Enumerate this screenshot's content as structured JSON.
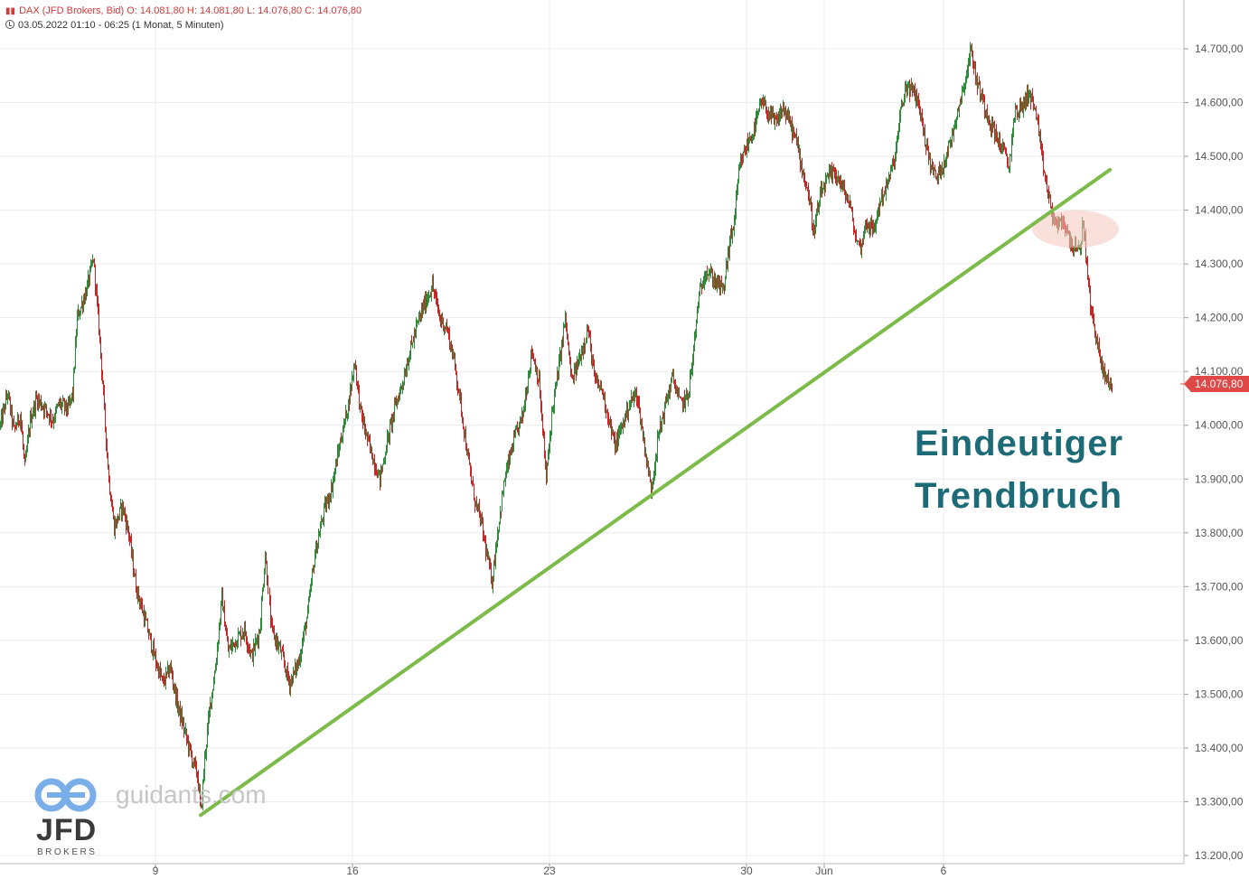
{
  "header": {
    "instrument_line": "DAX (JFD Brokers, Bid)  O: 14.081,80  H: 14.081,80  L: 14.076,80  C: 14.076,80",
    "time_line": "03.05.2022 01:10 - 06:25   (1 Monat, 5 Minuten)"
  },
  "annotation": {
    "line1": "Eindeutiger",
    "line2": "Trendbruch"
  },
  "watermark": {
    "site": "guidants.com",
    "broker": "JFD",
    "broker_sub": "BROKERS"
  },
  "colors": {
    "candle_up": "#2e8b3a",
    "candle_down": "#c62828",
    "trendline": "#7cbb4a",
    "highlight": "#f5c6bd",
    "price_tag": "#e04848",
    "annotation": "#1e6b78",
    "grid": "#ececec"
  },
  "chart_data": {
    "type": "candlestick",
    "instrument": "DAX (JFD Brokers, Bid)",
    "timeframe": "1 Monat, 5 Minuten",
    "x_tick_labels": [
      "9",
      "16",
      "23",
      "30",
      "Jun",
      "6"
    ],
    "y_tick_labels": [
      "14.700,00",
      "14.600,00",
      "14.500,00",
      "14.400,00",
      "14.300,00",
      "14.200,00",
      "14.100,00",
      "14.000,00",
      "13.900,00",
      "13.800,00",
      "13.700,00",
      "13.600,00",
      "13.500,00",
      "13.400,00",
      "13.300,00",
      "13.200,00"
    ],
    "y_ticks": [
      14700,
      14600,
      14500,
      14400,
      14300,
      14200,
      14100,
      14000,
      13900,
      13800,
      13700,
      13600,
      13500,
      13400,
      13300,
      13200
    ],
    "ylim": [
      13160,
      14760
    ],
    "last_price": 14076.8,
    "last_price_label": "14.076,80",
    "ohlc_last": {
      "open": 14081.8,
      "high": 14081.8,
      "low": 14076.8,
      "close": 14076.8
    },
    "price_path": [
      [
        0,
        14000
      ],
      [
        8,
        14060
      ],
      [
        15,
        13990
      ],
      [
        22,
        14020
      ],
      [
        27,
        13920
      ],
      [
        33,
        14010
      ],
      [
        40,
        14050
      ],
      [
        50,
        14030
      ],
      [
        58,
        14010
      ],
      [
        65,
        14040
      ],
      [
        75,
        14030
      ],
      [
        80,
        14060
      ],
      [
        85,
        14200
      ],
      [
        95,
        14250
      ],
      [
        103,
        14310
      ],
      [
        110,
        14160
      ],
      [
        116,
        14000
      ],
      [
        120,
        13900
      ],
      [
        126,
        13810
      ],
      [
        135,
        13850
      ],
      [
        142,
        13800
      ],
      [
        150,
        13700
      ],
      [
        158,
        13650
      ],
      [
        166,
        13600
      ],
      [
        172,
        13560
      ],
      [
        180,
        13520
      ],
      [
        188,
        13550
      ],
      [
        196,
        13480
      ],
      [
        204,
        13430
      ],
      [
        212,
        13380
      ],
      [
        218,
        13350
      ],
      [
        222,
        13280
      ],
      [
        226,
        13380
      ],
      [
        232,
        13480
      ],
      [
        238,
        13550
      ],
      [
        245,
        13680
      ],
      [
        252,
        13580
      ],
      [
        260,
        13600
      ],
      [
        270,
        13620
      ],
      [
        278,
        13570
      ],
      [
        287,
        13620
      ],
      [
        293,
        13760
      ],
      [
        300,
        13620
      ],
      [
        310,
        13580
      ],
      [
        320,
        13520
      ],
      [
        330,
        13560
      ],
      [
        340,
        13650
      ],
      [
        348,
        13760
      ],
      [
        358,
        13840
      ],
      [
        366,
        13880
      ],
      [
        375,
        13960
      ],
      [
        385,
        14040
      ],
      [
        392,
        14120
      ],
      [
        398,
        14030
      ],
      [
        405,
        13980
      ],
      [
        412,
        13940
      ],
      [
        420,
        13900
      ],
      [
        428,
        13970
      ],
      [
        436,
        14030
      ],
      [
        445,
        14080
      ],
      [
        452,
        14130
      ],
      [
        460,
        14180
      ],
      [
        468,
        14220
      ],
      [
        478,
        14260
      ],
      [
        486,
        14200
      ],
      [
        494,
        14180
      ],
      [
        502,
        14120
      ],
      [
        510,
        14030
      ],
      [
        518,
        13930
      ],
      [
        525,
        13860
      ],
      [
        532,
        13820
      ],
      [
        538,
        13760
      ],
      [
        544,
        13710
      ],
      [
        550,
        13800
      ],
      [
        558,
        13900
      ],
      [
        568,
        13970
      ],
      [
        578,
        14020
      ],
      [
        588,
        14140
      ],
      [
        596,
        14080
      ],
      [
        604,
        13900
      ],
      [
        610,
        14020
      ],
      [
        618,
        14110
      ],
      [
        625,
        14200
      ],
      [
        632,
        14080
      ],
      [
        640,
        14120
      ],
      [
        650,
        14180
      ],
      [
        658,
        14080
      ],
      [
        665,
        14070
      ],
      [
        672,
        14020
      ],
      [
        680,
        13960
      ],
      [
        688,
        14000
      ],
      [
        696,
        14040
      ],
      [
        704,
        14060
      ],
      [
        712,
        13970
      ],
      [
        720,
        13880
      ],
      [
        728,
        13980
      ],
      [
        736,
        14040
      ],
      [
        744,
        14090
      ],
      [
        752,
        14040
      ],
      [
        760,
        14050
      ],
      [
        766,
        14120
      ],
      [
        772,
        14230
      ],
      [
        780,
        14290
      ],
      [
        790,
        14270
      ],
      [
        800,
        14250
      ],
      [
        806,
        14330
      ],
      [
        812,
        14380
      ],
      [
        818,
        14480
      ],
      [
        826,
        14520
      ],
      [
        834,
        14550
      ],
      [
        842,
        14600
      ],
      [
        850,
        14580
      ],
      [
        858,
        14560
      ],
      [
        866,
        14590
      ],
      [
        874,
        14560
      ],
      [
        882,
        14520
      ],
      [
        888,
        14470
      ],
      [
        894,
        14430
      ],
      [
        900,
        14360
      ],
      [
        908,
        14430
      ],
      [
        916,
        14460
      ],
      [
        924,
        14470
      ],
      [
        932,
        14440
      ],
      [
        940,
        14410
      ],
      [
        946,
        14350
      ],
      [
        952,
        14330
      ],
      [
        958,
        14380
      ],
      [
        966,
        14360
      ],
      [
        974,
        14420
      ],
      [
        982,
        14450
      ],
      [
        990,
        14500
      ],
      [
        996,
        14580
      ],
      [
        1002,
        14630
      ],
      [
        1010,
        14620
      ],
      [
        1016,
        14600
      ],
      [
        1022,
        14540
      ],
      [
        1030,
        14480
      ],
      [
        1036,
        14460
      ],
      [
        1044,
        14490
      ],
      [
        1052,
        14530
      ],
      [
        1058,
        14580
      ],
      [
        1066,
        14630
      ],
      [
        1074,
        14700
      ],
      [
        1080,
        14640
      ],
      [
        1088,
        14600
      ],
      [
        1096,
        14560
      ],
      [
        1104,
        14530
      ],
      [
        1110,
        14510
      ],
      [
        1116,
        14480
      ],
      [
        1122,
        14580
      ],
      [
        1130,
        14590
      ],
      [
        1138,
        14620
      ],
      [
        1146,
        14580
      ],
      [
        1152,
        14500
      ],
      [
        1158,
        14440
      ],
      [
        1164,
        14390
      ],
      [
        1170,
        14370
      ],
      [
        1176,
        14380
      ],
      [
        1182,
        14350
      ],
      [
        1188,
        14330
      ],
      [
        1194,
        14320
      ],
      [
        1198,
        14380
      ],
      [
        1202,
        14300
      ],
      [
        1206,
        14220
      ],
      [
        1212,
        14170
      ],
      [
        1218,
        14110
      ],
      [
        1224,
        14085
      ],
      [
        1230,
        14077
      ]
    ],
    "trendline": [
      [
        222,
        13275
      ],
      [
        1228,
        14475
      ]
    ],
    "highlight_zone": {
      "x_center": 1190,
      "y_center": 14365,
      "rx": 48,
      "ry_value": 35
    }
  }
}
